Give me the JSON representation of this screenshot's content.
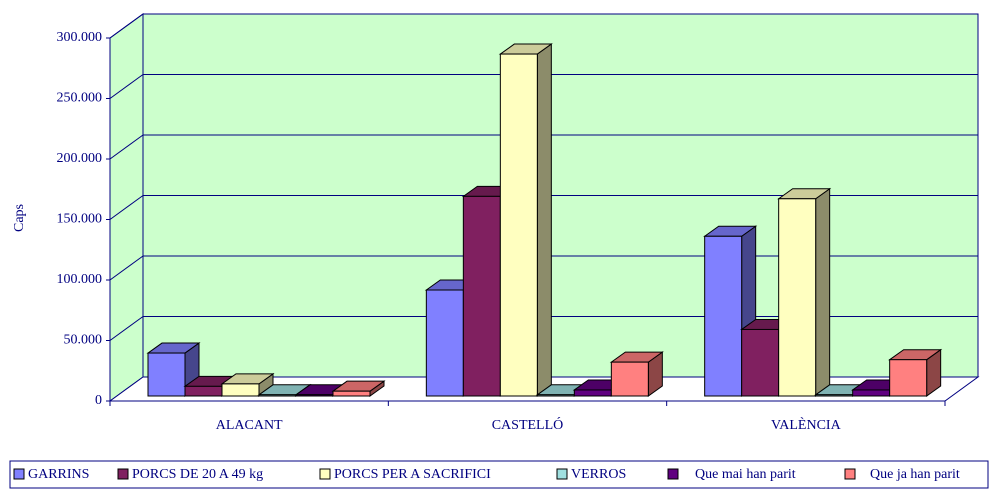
{
  "chart_data": {
    "type": "bar3d",
    "y_label": "Caps",
    "categories": [
      "ALACANT",
      "CASTELLÓ",
      "VALÈNCIA"
    ],
    "series": [
      {
        "name": "GARRINS",
        "color": "#8080ff",
        "values": [
          35500,
          87600,
          132000
        ]
      },
      {
        "name": "PORCS DE 20 A 49 kg",
        "color": "#802060",
        "values": [
          8000,
          165000,
          55000
        ]
      },
      {
        "name": "PORCS PER A SACRIFICI",
        "color": "#ffffc0",
        "values": [
          10000,
          282600,
          163000
        ]
      },
      {
        "name": "VERROS",
        "color": "#a0e0e0",
        "values": [
          1000,
          1000,
          1000
        ]
      },
      {
        "name": "Que mai han parit",
        "color": "#600080",
        "values": [
          1000,
          5000,
          5000
        ]
      },
      {
        "name": "Que ja han parit",
        "color": "#ff8080",
        "values": [
          4000,
          28000,
          30000
        ]
      }
    ],
    "ylim": [
      0,
      300000
    ],
    "yticks": [
      {
        "value": 0,
        "label": "0"
      },
      {
        "value": 50000,
        "label": "50.000"
      },
      {
        "value": 100000,
        "label": "100.000"
      },
      {
        "value": 150000,
        "label": "150.000"
      },
      {
        "value": 200000,
        "label": "200.000"
      },
      {
        "value": 250000,
        "label": "250.000"
      },
      {
        "value": 300000,
        "label": "300.000"
      }
    ],
    "grid": true,
    "background": "#ccffcc"
  }
}
